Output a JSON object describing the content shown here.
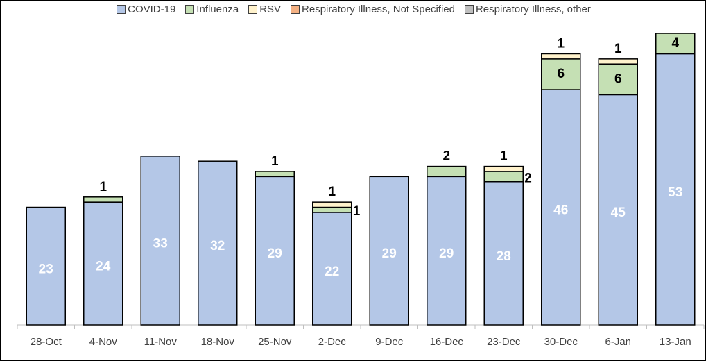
{
  "chart_data": {
    "type": "stacked_bar",
    "categories": [
      "28-Oct",
      "4-Nov",
      "11-Nov",
      "18-Nov",
      "25-Nov",
      "2-Dec",
      "9-Dec",
      "16-Dec",
      "23-Dec",
      "30-Dec",
      "6-Jan",
      "13-Jan"
    ],
    "series": [
      {
        "name": "COVID-19",
        "color": "#b4c7e7",
        "values": [
          23,
          24,
          33,
          32,
          29,
          22,
          29,
          29,
          28,
          46,
          45,
          53
        ]
      },
      {
        "name": "Influenza",
        "color": "#c5e0b4",
        "values": [
          0,
          1,
          0,
          0,
          1,
          1,
          0,
          2,
          2,
          6,
          6,
          4
        ]
      },
      {
        "name": "RSV",
        "color": "#fff2cc",
        "values": [
          0,
          0,
          0,
          0,
          0,
          1,
          0,
          0,
          1,
          1,
          1,
          0
        ]
      },
      {
        "name": "Respiratory Illness, Not Specified",
        "color": "#f4b183",
        "values": [
          0,
          0,
          0,
          0,
          0,
          0,
          0,
          0,
          0,
          0,
          0,
          0
        ]
      },
      {
        "name": "Respiratory Illness, other",
        "color": "#bfbfbf",
        "values": [
          0,
          0,
          0,
          0,
          0,
          0,
          0,
          0,
          0,
          0,
          0,
          0
        ]
      }
    ]
  }
}
